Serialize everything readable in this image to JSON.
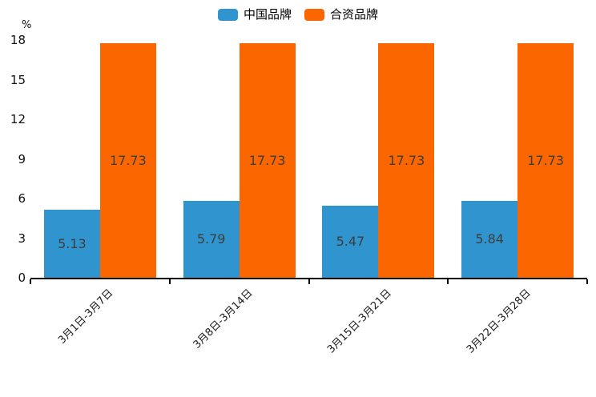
{
  "chart_data": {
    "type": "bar",
    "title": "",
    "unit_label": "%",
    "categories": [
      "3月1日-3月7日",
      "3月8日-3月14日",
      "3月15日-3月21日",
      "3月22日-3月28日"
    ],
    "series": [
      {
        "name": "中国品牌",
        "color": "#3095ce",
        "values": [
          5.13,
          5.79,
          5.47,
          5.84
        ]
      },
      {
        "name": "合资品牌",
        "color": "#fc6600",
        "values": [
          17.73,
          17.73,
          17.73,
          17.73
        ]
      }
    ],
    "y_ticks": [
      0,
      3,
      6,
      9,
      12,
      15,
      18
    ],
    "ylim": [
      0,
      18
    ],
    "grid": false,
    "legend_position": "top-center",
    "value_labels": "centered-inside-bars",
    "value_label_color": "#3d3d3d",
    "axis_color": "#000000",
    "background_color": "#ffffff"
  }
}
